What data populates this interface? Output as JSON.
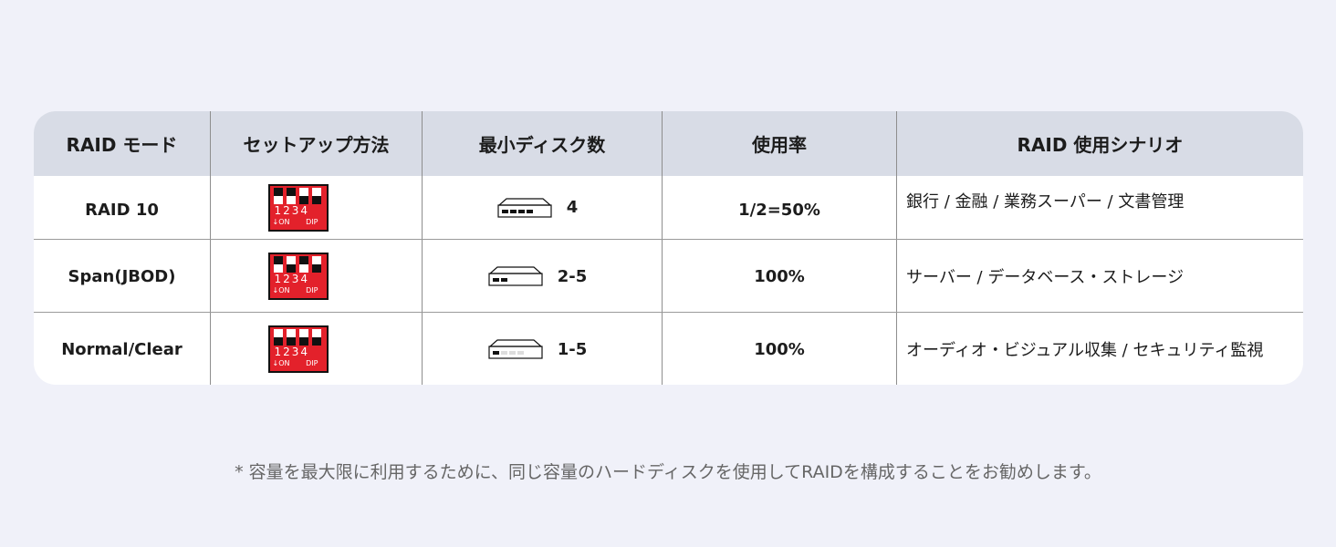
{
  "header": [
    "RAID モード",
    "セットアップ方法",
    "最小ディスク数",
    "使用率",
    "RAID 使用シナリオ"
  ],
  "dip": {
    "numbers": "1234",
    "on_label": "↓ON",
    "dip_label": "DIP"
  },
  "rows": [
    {
      "mode": "RAID 10",
      "switches_on": [
        true,
        true,
        false,
        false
      ],
      "disk_slots_filled": 4,
      "min_disks": "4",
      "usage": "1/2=50%",
      "scenario": "銀行 / 金融 / 業務スーパー / 文書管理"
    },
    {
      "mode": "Span(JBOD)",
      "switches_on": [
        true,
        false,
        true,
        false
      ],
      "disk_slots_filled": 2,
      "min_disks": "2-5",
      "usage": "100%",
      "scenario": "サーバー / データベース・ストレージ"
    },
    {
      "mode": "Normal/Clear",
      "switches_on": [
        false,
        false,
        false,
        false
      ],
      "disk_slots_filled": 1,
      "min_disks": "1-5",
      "usage": "100%",
      "scenario": "オーディオ・ビジュアル収集 / セキュリティ監視"
    }
  ],
  "footnote": "* 容量を最大限に利用するために、同じ容量のハードディスクを使用してRAIDを構成することをお勧めします。",
  "colors": {
    "background": "#f0f1f9",
    "header": "#d8dce6",
    "dip_red": "#e3212b"
  }
}
